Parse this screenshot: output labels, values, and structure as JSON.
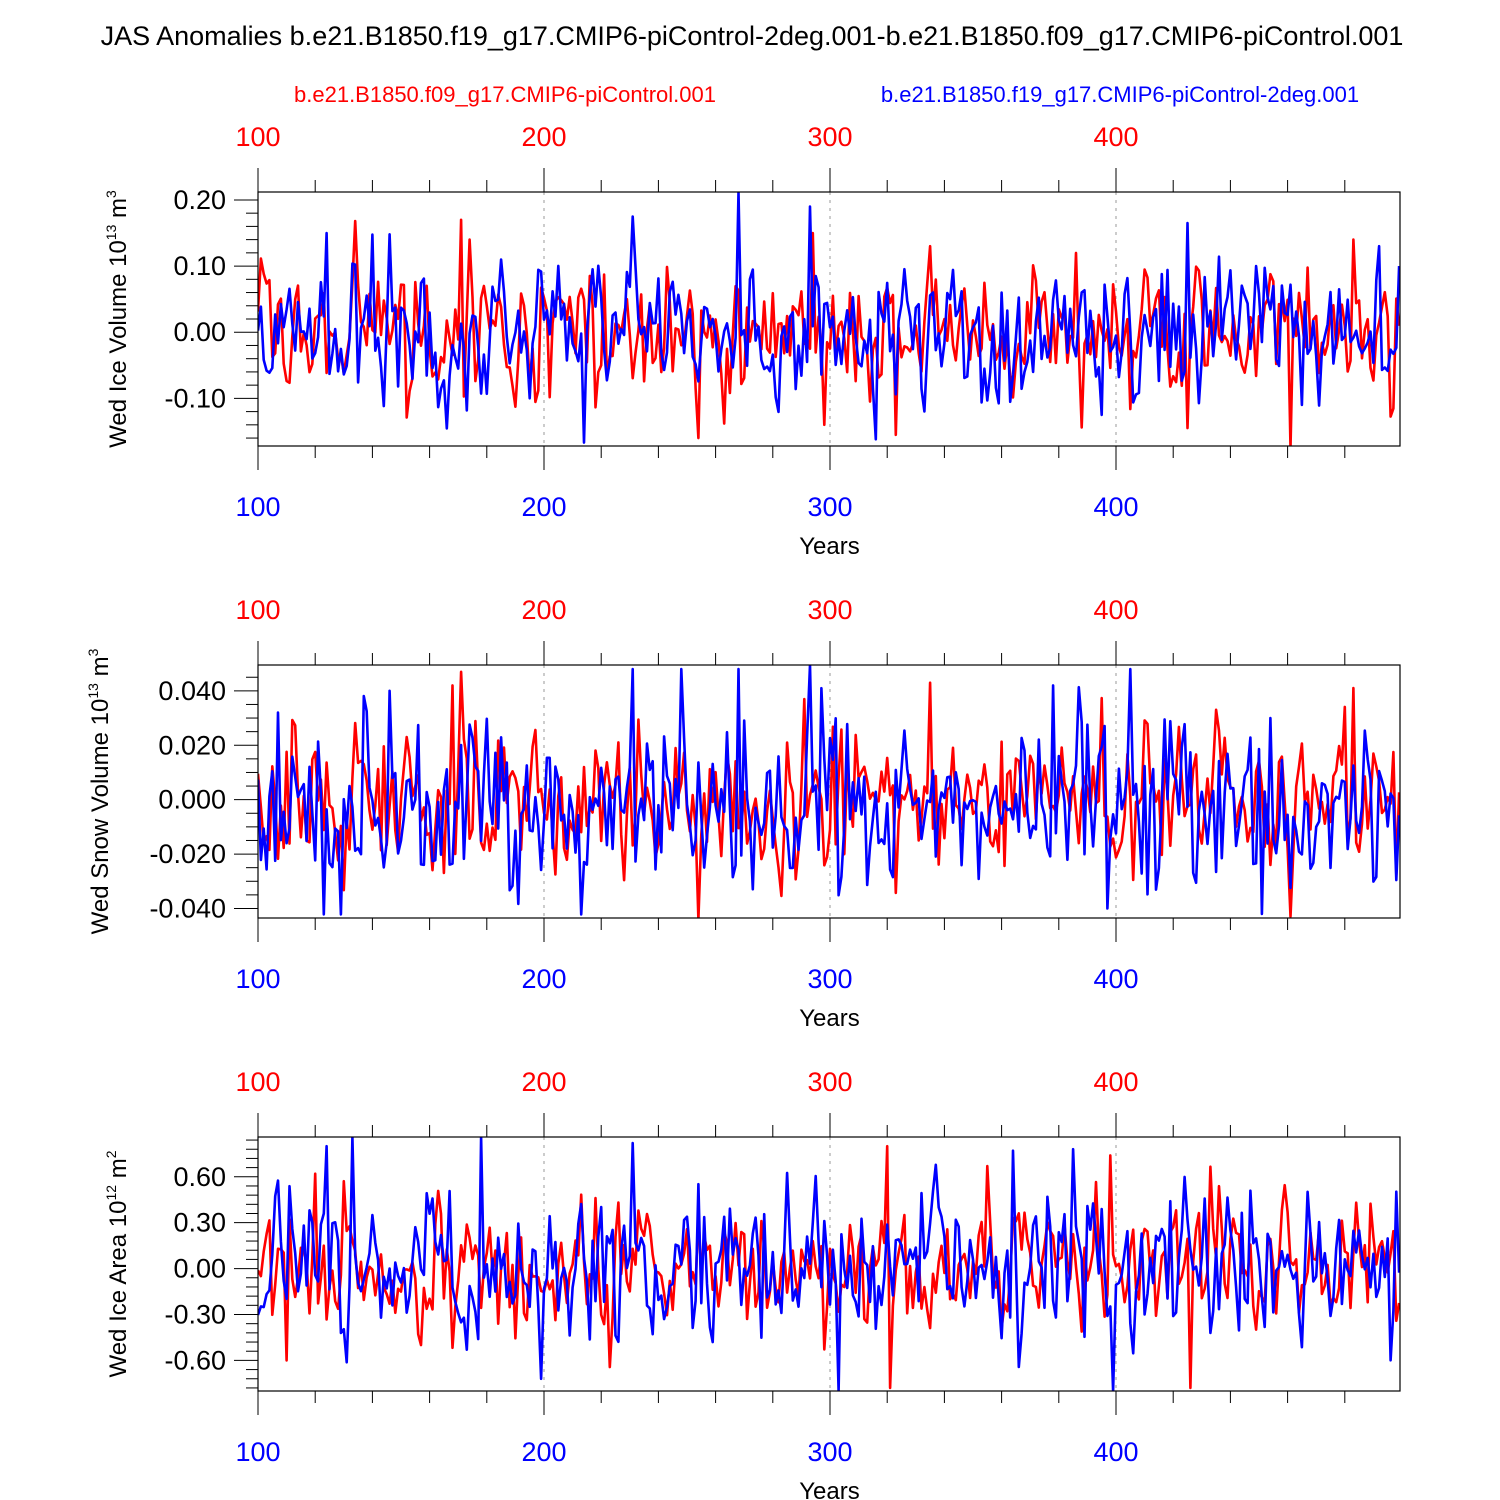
{
  "figure_title": "JAS Anomalies b.e21.B1850.f19_g17.CMIP6-piControl-2deg.001-b.e21.B1850.f09_g17.CMIP6-piControl.001",
  "colors": {
    "case_a": "#ff0000",
    "case_b": "#0000ff",
    "frame": "#000000",
    "grid": "#999999"
  },
  "legend": {
    "case_a": "b.e21.B1850.f09_g17.CMIP6-piControl.001",
    "case_b": "b.e21.B1850.f19_g17.CMIP6-piControl-2deg.001"
  },
  "chart_data": [
    {
      "type": "line",
      "title": "",
      "ylabel": "Wed Ice Volume 10",
      "ylabel_exp": "13",
      "ylabel_unit": " m",
      "ylabel_unit_exp": "3",
      "xlabel": "Years",
      "xlim": [
        100,
        499
      ],
      "ylim": [
        -0.172,
        0.212
      ],
      "xticks": [
        100,
        200,
        300,
        400
      ],
      "xtick_labels": [
        "100",
        "200",
        "300",
        "400"
      ],
      "yticks": [
        -0.1,
        0.0,
        0.1,
        0.2
      ],
      "ytick_labels": [
        "-0.10",
        "0.00",
        "0.10",
        "0.20"
      ],
      "yminor_step": 0.02,
      "series": [
        {
          "name": "b.e21.B1850.f09_g17.CMIP6-piControl.001",
          "color": "#ff0000",
          "std": 0.05,
          "events": [
            [
              171,
              0.17
            ],
            [
              134,
              0.168
            ],
            [
              174,
              0.14
            ],
            [
              254,
              -0.16
            ],
            [
              294,
              0.15
            ],
            [
              298,
              -0.14
            ],
            [
              323,
              -0.155
            ],
            [
              335,
              0.13
            ],
            [
              425,
              -0.145
            ],
            [
              461,
              -0.175
            ],
            [
              483,
              0.14
            ],
            [
              386,
              0.12
            ]
          ]
        },
        {
          "name": "b.e21.B1850.f19_g17.CMIP6-piControl-2deg.001",
          "color": "#0000ff",
          "std": 0.058,
          "events": [
            [
              268,
              0.212
            ],
            [
              293,
              0.19
            ],
            [
              231,
              0.175
            ],
            [
              124,
              0.15
            ],
            [
              146,
              0.148
            ],
            [
              185,
              0.11
            ],
            [
              425,
              0.165
            ],
            [
              395,
              -0.125
            ],
            [
              465,
              -0.11
            ],
            [
              492,
              0.13
            ]
          ]
        }
      ]
    },
    {
      "type": "line",
      "title": "",
      "ylabel": "Wed Snow Volume 10",
      "ylabel_exp": "13",
      "ylabel_unit": " m",
      "ylabel_unit_exp": "3",
      "xlabel": "Years",
      "xlim": [
        100,
        499
      ],
      "ylim": [
        -0.0435,
        0.0495
      ],
      "xticks": [
        100,
        200,
        300,
        400
      ],
      "xtick_labels": [
        "100",
        "200",
        "300",
        "400"
      ],
      "yticks": [
        -0.04,
        -0.02,
        0.0,
        0.02,
        0.04
      ],
      "ytick_labels": [
        "-0.040",
        "-0.020",
        "0.000",
        "0.020",
        "0.040"
      ],
      "yminor_step": 0.005,
      "series": [
        {
          "name": "b.e21.B1850.f09_g17.CMIP6-piControl.001",
          "color": "#ff0000",
          "std": 0.014,
          "events": [
            [
              171,
              0.047
            ],
            [
              168,
              0.042
            ],
            [
              254,
              -0.044
            ],
            [
              335,
              0.043
            ],
            [
              461,
              -0.043
            ],
            [
              483,
              0.041
            ],
            [
              291,
              0.037
            ]
          ]
        },
        {
          "name": "b.e21.B1850.f19_g17.CMIP6-piControl-2deg.001",
          "color": "#0000ff",
          "std": 0.017,
          "events": [
            [
              293,
              0.0495
            ],
            [
              268,
              0.048
            ],
            [
              231,
              0.048
            ],
            [
              146,
              0.04
            ],
            [
              378,
              0.042
            ],
            [
              397,
              -0.04
            ],
            [
              451,
              -0.042
            ],
            [
              107,
              0.032
            ]
          ]
        }
      ]
    },
    {
      "type": "line",
      "title": "",
      "ylabel": "Wed Ice Area 10",
      "ylabel_exp": "12",
      "ylabel_unit": " m",
      "ylabel_unit_exp": "2",
      "xlabel": "Years",
      "xlim": [
        100,
        499
      ],
      "ylim": [
        -0.8,
        0.86
      ],
      "xticks": [
        100,
        200,
        300,
        400
      ],
      "xtick_labels": [
        "100",
        "200",
        "300",
        "400"
      ],
      "yticks": [
        -0.6,
        -0.3,
        0.0,
        0.3,
        0.6
      ],
      "ytick_labels": [
        "-0.60",
        "-0.30",
        "0.00",
        "0.30",
        "0.60"
      ],
      "yminor_step": 0.06,
      "series": [
        {
          "name": "b.e21.B1850.f09_g17.CMIP6-piControl.001",
          "color": "#ff0000",
          "std": 0.22,
          "events": [
            [
              320,
              0.8
            ],
            [
              321,
              -0.78
            ],
            [
              398,
              0.74
            ],
            [
              426,
              -0.78
            ],
            [
              110,
              -0.6
            ],
            [
              120,
              0.62
            ]
          ]
        },
        {
          "name": "b.e21.B1850.f19_g17.CMIP6-piControl-2deg.001",
          "color": "#0000ff",
          "std": 0.27,
          "events": [
            [
              178,
              0.86
            ],
            [
              133,
              0.86
            ],
            [
              124,
              0.8
            ],
            [
              231,
              0.82
            ],
            [
              303,
              -0.8
            ],
            [
              399,
              -0.8
            ],
            [
              199,
              -0.72
            ],
            [
              385,
              0.78
            ]
          ]
        }
      ]
    }
  ]
}
